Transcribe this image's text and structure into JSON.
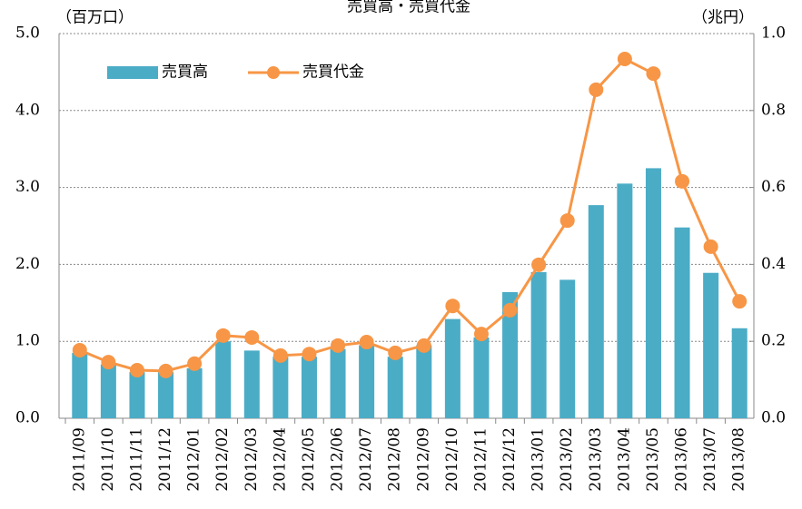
{
  "chart_data": {
    "type": "bar-line",
    "title": "売買高・売買代金",
    "y_label": "（百万口）",
    "y2_label": "（兆円）",
    "categories": [
      "2011/09",
      "2011/10",
      "2011/11",
      "2011/12",
      "2012/01",
      "2012/02",
      "2012/03",
      "2012/04",
      "2012/05",
      "2012/06",
      "2012/07",
      "2012/08",
      "2012/09",
      "2012/10",
      "2012/11",
      "2012/12",
      "2013/01",
      "2013/02",
      "2013/03",
      "2013/04",
      "2013/05",
      "2013/06",
      "2013/07",
      "2013/08"
    ],
    "series": [
      {
        "name": "売買高",
        "type": "bar",
        "color": "#4bacc6",
        "values": [
          0.85,
          0.7,
          0.6,
          0.6,
          0.65,
          1.0,
          0.88,
          0.8,
          0.8,
          0.9,
          0.95,
          0.8,
          0.95,
          1.29,
          1.05,
          1.64,
          1.9,
          1.8,
          2.77,
          3.05,
          3.25,
          2.48,
          1.89,
          1.17
        ]
      },
      {
        "name": "売買代金",
        "type": "line",
        "axis": "y2",
        "color": "#f79646",
        "values": [
          0.177,
          0.146,
          0.125,
          0.123,
          0.142,
          0.215,
          0.21,
          0.163,
          0.167,
          0.189,
          0.198,
          0.17,
          0.189,
          0.292,
          0.219,
          0.281,
          0.399,
          0.514,
          0.854,
          0.934,
          0.896,
          0.616,
          0.446,
          0.304
        ]
      }
    ],
    "ylim": [
      0,
      5
    ],
    "yticks": [
      {
        "value": 0,
        "label": "0.0"
      },
      {
        "value": 1,
        "label": "1.0"
      },
      {
        "value": 2,
        "label": "2.0"
      },
      {
        "value": 3,
        "label": "3.0"
      },
      {
        "value": 4,
        "label": "4.0"
      },
      {
        "value": 5,
        "label": "5.0"
      }
    ],
    "y2lim": [
      0,
      1
    ],
    "y2ticks": [
      {
        "value": 0,
        "label": "0.0"
      },
      {
        "value": 0.2,
        "label": "0.2"
      },
      {
        "value": 0.4,
        "label": "0.4"
      },
      {
        "value": 0.6,
        "label": "0.6"
      },
      {
        "value": 0.8,
        "label": "0.8"
      },
      {
        "value": 1,
        "label": "1.0"
      }
    ],
    "grid": true
  }
}
